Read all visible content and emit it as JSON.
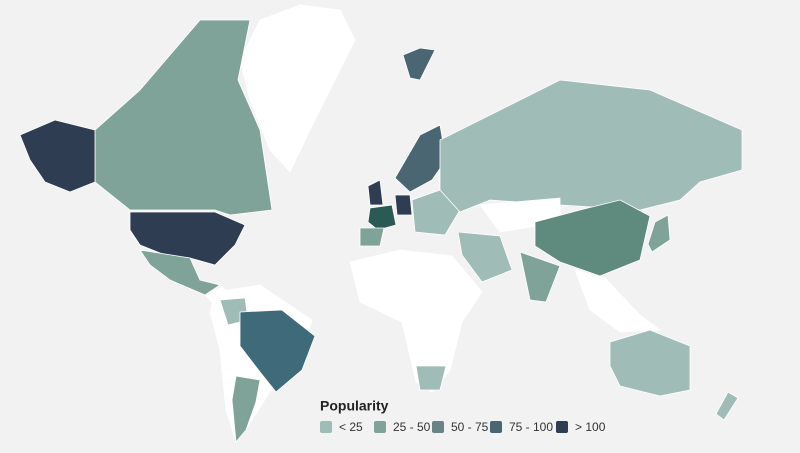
{
  "legend": {
    "title": "Popularity",
    "items": [
      {
        "label": "< 25",
        "color": "#9fbcb6"
      },
      {
        "label": "25 - 50",
        "color": "#7fa399"
      },
      {
        "label": "50 - 75",
        "color": "#6a8386"
      },
      {
        "label": "75 - 100",
        "color": "#4a6672"
      },
      {
        "label": "> 100",
        "color": "#2e3d51"
      }
    ]
  }
}
